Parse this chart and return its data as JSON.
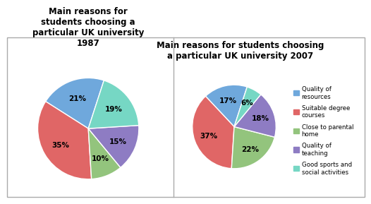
{
  "chart1_title": "Main reasons for\nstudents choosing a\nparticular UK university\n1987",
  "chart2_title": "Main reasons for students choosing\na particular UK university 2007",
  "values1": [
    21,
    35,
    10,
    15,
    19
  ],
  "values2": [
    17,
    37,
    22,
    18,
    6
  ],
  "colors": [
    "#6fa8dc",
    "#e06666",
    "#93c47d",
    "#8e7cc3",
    "#76d7c4"
  ],
  "pct_labels1": [
    "21%",
    "35%",
    "10%",
    "15%",
    "19%"
  ],
  "pct_labels2": [
    "17%",
    "37%",
    "22%",
    "18%",
    "6%"
  ],
  "startangle1": 72,
  "startangle2": 72,
  "background_color": "#ffffff",
  "legend_labels": [
    "Quality of\nresources",
    "Suitable degree\ncourses",
    "Close to parental\nhome",
    "Quality of\nteaching",
    "Good sports and\nsocial activities"
  ]
}
